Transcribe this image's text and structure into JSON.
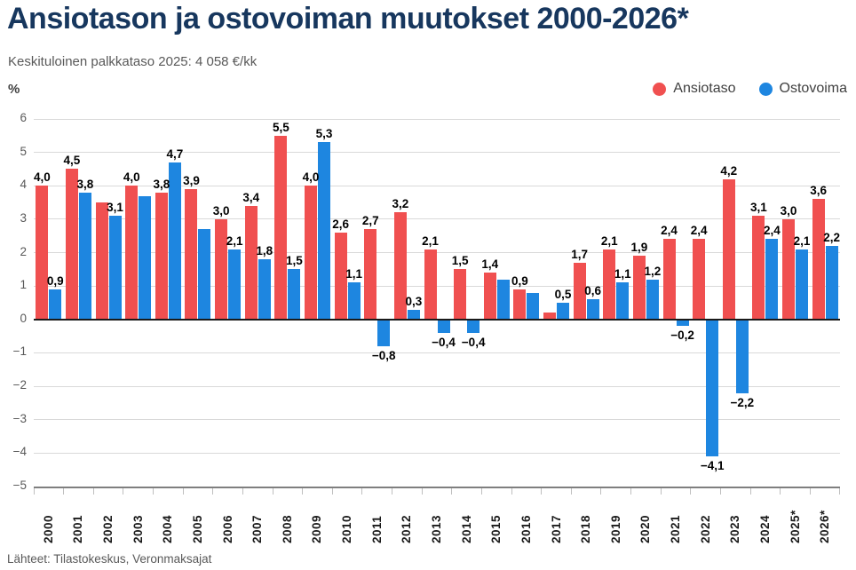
{
  "title": "Ansiotason ja ostovoiman muutokset 2000-2026*",
  "subtitle": "Keskituloinen palkkataso 2025: 4 058 €/kk",
  "footer": "Lähteet: Tilastokeskus, Veronmaksajat",
  "colors": {
    "title": "#17375e",
    "ansiotaso_red": "#f05050",
    "ostovoima_blue": "#1e86e0",
    "grid": "#d9d9d9",
    "zero_line": "#1a1a1a",
    "axis_line": "#7f7f7f",
    "tick": "#bfbfbf",
    "muted_text": "#595959"
  },
  "chart_data": {
    "type": "bar",
    "title": "Ansiotason ja ostovoiman muutokset 2000-2026*",
    "ylabel": "%",
    "ylim": [
      -5,
      6
    ],
    "yticks": [
      6,
      5,
      4,
      3,
      2,
      1,
      0,
      -1,
      -2,
      -3,
      -4,
      -5
    ],
    "grid": true,
    "legend_position": "top-right",
    "categories": [
      "2000",
      "2001",
      "2002",
      "2003",
      "2004",
      "2005",
      "2006",
      "2007",
      "2008",
      "2009",
      "2010",
      "2011",
      "2012",
      "2013",
      "2014",
      "2015",
      "2016",
      "2017",
      "2018",
      "2019",
      "2020",
      "2021",
      "2022",
      "2023",
      "2024",
      "2025*",
      "2026*"
    ],
    "series": [
      {
        "name": "Ansiotaso",
        "color": "#f05050",
        "values": [
          4.0,
          4.5,
          3.5,
          4.0,
          3.8,
          3.9,
          3.0,
          3.4,
          5.5,
          4.0,
          2.6,
          2.7,
          3.2,
          2.1,
          1.5,
          1.4,
          0.9,
          0.2,
          1.7,
          2.1,
          1.9,
          2.4,
          2.4,
          4.2,
          3.1,
          3.0,
          3.6
        ],
        "labels": [
          "4,0",
          "4,5",
          "",
          "4,0",
          "3,8",
          "3,9",
          "3,0",
          "3,4",
          "5,5",
          "4,0",
          "2,6",
          "2,7",
          "3,2",
          "2,1",
          "1,5",
          "1,4",
          "0,9",
          "",
          "1,7",
          "2,1",
          "1,9",
          "2,4",
          "2,4",
          "4,2",
          "3,1",
          "3,0",
          "3,6"
        ]
      },
      {
        "name": "Ostovoima",
        "color": "#1e86e0",
        "values": [
          0.9,
          3.8,
          3.1,
          3.7,
          4.7,
          2.7,
          2.1,
          1.8,
          1.5,
          5.3,
          1.1,
          -0.8,
          0.3,
          -0.4,
          -0.4,
          1.2,
          0.8,
          0.5,
          0.6,
          1.1,
          1.2,
          -0.2,
          -4.1,
          -2.2,
          2.4,
          2.1,
          2.2
        ],
        "labels": [
          "0,9",
          "3,8",
          "3,1",
          "",
          "4,7",
          "",
          "2,1",
          "1,8",
          "1,5",
          "5,3",
          "1,1",
          "−0,8",
          "0,3",
          "−0,4",
          "−0,4",
          "",
          "",
          "0,5",
          "0,6",
          "1,1",
          "1,2",
          "−0,2",
          "−4,1",
          "−2,2",
          "2,4",
          "2,1",
          "2,2"
        ]
      }
    ]
  }
}
